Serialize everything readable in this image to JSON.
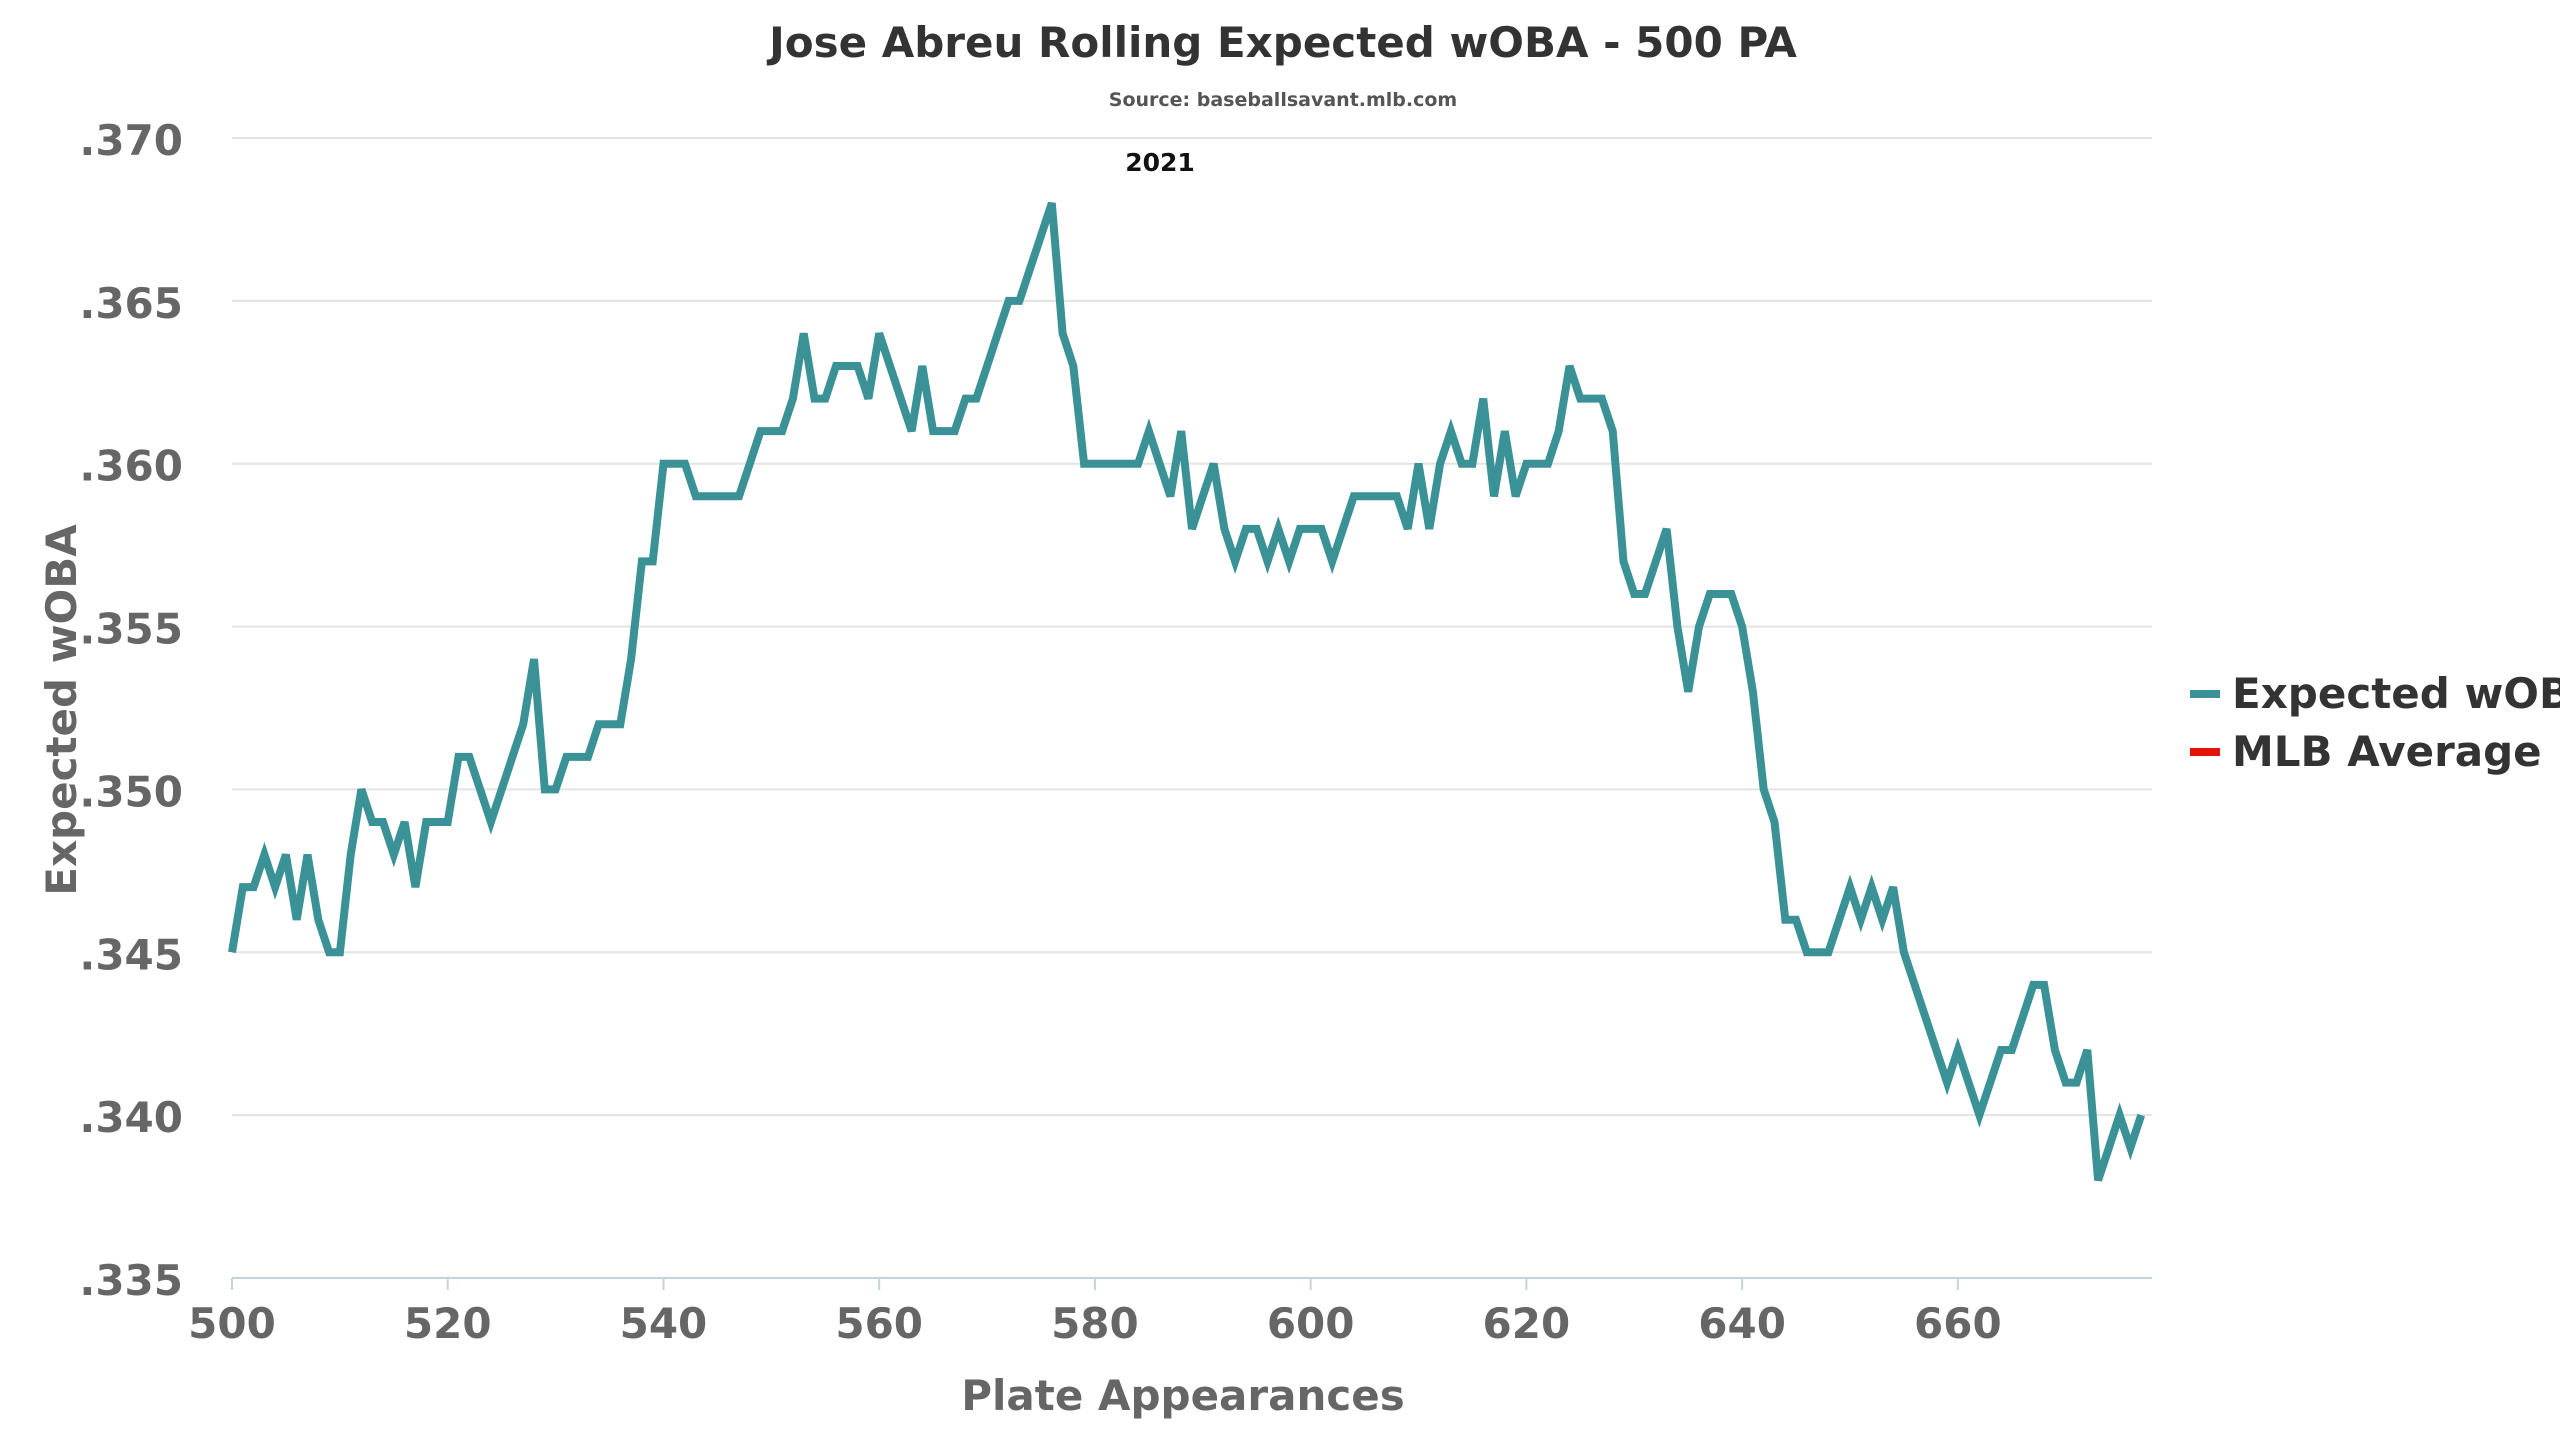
{
  "chart_data": {
    "type": "line",
    "title": "Jose Abreu Rolling Expected wOBA - 500 PA",
    "subtitle": "Source: baseballsavant.mlb.com",
    "annotation": "2021",
    "xlabel": "Plate Appearances",
    "ylabel": "Expected wOBA",
    "xlim": [
      500,
      678
    ],
    "ylim": [
      0.335,
      0.37
    ],
    "x_ticks": [
      500,
      520,
      540,
      560,
      580,
      600,
      620,
      640,
      660
    ],
    "x_tick_labels": [
      "500",
      "520",
      "540",
      "560",
      "580",
      "600",
      "620",
      "640",
      "660"
    ],
    "y_ticks": [
      0.335,
      0.34,
      0.345,
      0.35,
      0.355,
      0.36,
      0.365,
      0.37
    ],
    "y_tick_labels": [
      ".335",
      ".340",
      ".345",
      ".350",
      ".355",
      ".360",
      ".365",
      ".370"
    ],
    "grid": "horizontal",
    "legend_position": "right",
    "series": [
      {
        "name": "Expected wOBA",
        "color": "#3a9196",
        "points": [
          [
            500,
            0.345
          ],
          [
            501,
            0.347
          ],
          [
            502,
            0.347
          ],
          [
            503,
            0.348
          ],
          [
            504,
            0.347
          ],
          [
            505,
            0.348
          ],
          [
            506,
            0.346
          ],
          [
            507,
            0.348
          ],
          [
            508,
            0.346
          ],
          [
            509,
            0.345
          ],
          [
            510,
            0.345
          ],
          [
            511,
            0.348
          ],
          [
            512,
            0.35
          ],
          [
            513,
            0.349
          ],
          [
            514,
            0.349
          ],
          [
            515,
            0.348
          ],
          [
            516,
            0.349
          ],
          [
            517,
            0.347
          ],
          [
            518,
            0.349
          ],
          [
            519,
            0.349
          ],
          [
            520,
            0.349
          ],
          [
            521,
            0.351
          ],
          [
            522,
            0.351
          ],
          [
            523,
            0.35
          ],
          [
            524,
            0.349
          ],
          [
            525,
            0.35
          ],
          [
            526,
            0.351
          ],
          [
            527,
            0.352
          ],
          [
            528,
            0.354
          ],
          [
            529,
            0.35
          ],
          [
            530,
            0.35
          ],
          [
            531,
            0.351
          ],
          [
            532,
            0.351
          ],
          [
            533,
            0.351
          ],
          [
            534,
            0.352
          ],
          [
            535,
            0.352
          ],
          [
            536,
            0.352
          ],
          [
            537,
            0.354
          ],
          [
            538,
            0.357
          ],
          [
            539,
            0.357
          ],
          [
            540,
            0.36
          ],
          [
            541,
            0.36
          ],
          [
            542,
            0.36
          ],
          [
            543,
            0.359
          ],
          [
            544,
            0.359
          ],
          [
            545,
            0.359
          ],
          [
            546,
            0.359
          ],
          [
            547,
            0.359
          ],
          [
            548,
            0.36
          ],
          [
            549,
            0.361
          ],
          [
            550,
            0.361
          ],
          [
            551,
            0.361
          ],
          [
            552,
            0.362
          ],
          [
            553,
            0.364
          ],
          [
            554,
            0.362
          ],
          [
            555,
            0.362
          ],
          [
            556,
            0.363
          ],
          [
            557,
            0.363
          ],
          [
            558,
            0.363
          ],
          [
            559,
            0.362
          ],
          [
            560,
            0.364
          ],
          [
            561,
            0.363
          ],
          [
            562,
            0.362
          ],
          [
            563,
            0.361
          ],
          [
            564,
            0.363
          ],
          [
            565,
            0.361
          ],
          [
            566,
            0.361
          ],
          [
            567,
            0.361
          ],
          [
            568,
            0.362
          ],
          [
            569,
            0.362
          ],
          [
            570,
            0.363
          ],
          [
            571,
            0.364
          ],
          [
            572,
            0.365
          ],
          [
            573,
            0.365
          ],
          [
            574,
            0.366
          ],
          [
            575,
            0.367
          ],
          [
            576,
            0.368
          ],
          [
            577,
            0.364
          ],
          [
            578,
            0.363
          ],
          [
            579,
            0.36
          ],
          [
            580,
            0.36
          ],
          [
            581,
            0.36
          ],
          [
            582,
            0.36
          ],
          [
            583,
            0.36
          ],
          [
            584,
            0.36
          ],
          [
            585,
            0.361
          ],
          [
            586,
            0.36
          ],
          [
            587,
            0.359
          ],
          [
            588,
            0.361
          ],
          [
            589,
            0.358
          ],
          [
            590,
            0.359
          ],
          [
            591,
            0.36
          ],
          [
            592,
            0.358
          ],
          [
            593,
            0.357
          ],
          [
            594,
            0.358
          ],
          [
            595,
            0.358
          ],
          [
            596,
            0.357
          ],
          [
            597,
            0.358
          ],
          [
            598,
            0.357
          ],
          [
            599,
            0.358
          ],
          [
            600,
            0.358
          ],
          [
            601,
            0.358
          ],
          [
            602,
            0.357
          ],
          [
            603,
            0.358
          ],
          [
            604,
            0.359
          ],
          [
            605,
            0.359
          ],
          [
            606,
            0.359
          ],
          [
            607,
            0.359
          ],
          [
            608,
            0.359
          ],
          [
            609,
            0.358
          ],
          [
            610,
            0.36
          ],
          [
            611,
            0.358
          ],
          [
            612,
            0.36
          ],
          [
            613,
            0.361
          ],
          [
            614,
            0.36
          ],
          [
            615,
            0.36
          ],
          [
            616,
            0.362
          ],
          [
            617,
            0.359
          ],
          [
            618,
            0.361
          ],
          [
            619,
            0.359
          ],
          [
            620,
            0.36
          ],
          [
            621,
            0.36
          ],
          [
            622,
            0.36
          ],
          [
            623,
            0.361
          ],
          [
            624,
            0.363
          ],
          [
            625,
            0.362
          ],
          [
            626,
            0.362
          ],
          [
            627,
            0.362
          ],
          [
            628,
            0.361
          ],
          [
            629,
            0.357
          ],
          [
            630,
            0.356
          ],
          [
            631,
            0.356
          ],
          [
            632,
            0.357
          ],
          [
            633,
            0.358
          ],
          [
            634,
            0.355
          ],
          [
            635,
            0.353
          ],
          [
            636,
            0.355
          ],
          [
            637,
            0.356
          ],
          [
            638,
            0.356
          ],
          [
            639,
            0.356
          ],
          [
            640,
            0.355
          ],
          [
            641,
            0.353
          ],
          [
            642,
            0.35
          ],
          [
            643,
            0.349
          ],
          [
            644,
            0.346
          ],
          [
            645,
            0.346
          ],
          [
            646,
            0.345
          ],
          [
            647,
            0.345
          ],
          [
            648,
            0.345
          ],
          [
            649,
            0.346
          ],
          [
            650,
            0.347
          ],
          [
            651,
            0.346
          ],
          [
            652,
            0.347
          ],
          [
            653,
            0.346
          ],
          [
            654,
            0.347
          ],
          [
            655,
            0.345
          ],
          [
            656,
            0.344
          ],
          [
            657,
            0.343
          ],
          [
            658,
            0.342
          ],
          [
            659,
            0.341
          ],
          [
            660,
            0.342
          ],
          [
            661,
            0.341
          ],
          [
            662,
            0.34
          ],
          [
            663,
            0.341
          ],
          [
            664,
            0.342
          ],
          [
            665,
            0.342
          ],
          [
            666,
            0.343
          ],
          [
            667,
            0.344
          ],
          [
            668,
            0.344
          ],
          [
            669,
            0.342
          ],
          [
            670,
            0.341
          ],
          [
            671,
            0.341
          ],
          [
            672,
            0.342
          ],
          [
            673,
            0.338
          ],
          [
            674,
            0.339
          ],
          [
            675,
            0.34
          ],
          [
            676,
            0.339
          ],
          [
            677,
            0.34
          ]
        ]
      },
      {
        "name": "MLB Average",
        "color": "#e3120b",
        "points": []
      }
    ]
  }
}
